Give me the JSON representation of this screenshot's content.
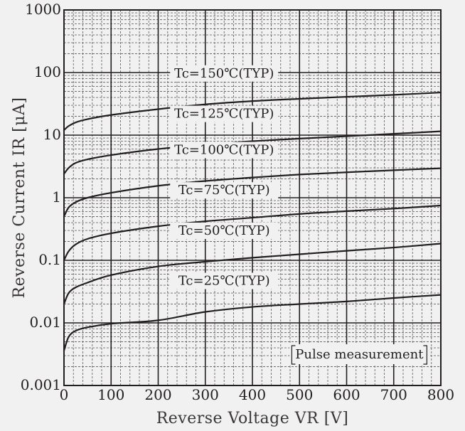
{
  "chart_data": {
    "type": "line",
    "xlabel": "Reverse Voltage  VR [V]",
    "ylabel": "Reverse Current IR [μA]",
    "xlim": [
      0,
      800
    ],
    "ylim": [
      0.001,
      1000
    ],
    "yscale": "log",
    "grid": true,
    "x_ticks": [
      0,
      100,
      200,
      300,
      400,
      500,
      600,
      700,
      800
    ],
    "y_ticks": [
      0.001,
      0.01,
      0.1,
      1,
      10,
      100,
      1000
    ],
    "y_tick_labels": [
      "0.001",
      "0.01",
      "0.1",
      "1",
      "10",
      "100",
      "1000"
    ],
    "annotation": "Pulse measurement",
    "series": [
      {
        "name": "Tc=150℃(TYP)",
        "x": [
          0,
          10,
          25,
          50,
          100,
          200,
          300,
          400,
          500,
          600,
          700,
          800
        ],
        "y": [
          12,
          14,
          16,
          18,
          21,
          26,
          31,
          35,
          38,
          41,
          44,
          48
        ]
      },
      {
        "name": "Tc=125℃(TYP)",
        "x": [
          0,
          10,
          25,
          50,
          100,
          200,
          300,
          400,
          500,
          600,
          700,
          800
        ],
        "y": [
          2.4,
          3.0,
          3.6,
          4.1,
          4.8,
          6.0,
          7.0,
          8.0,
          8.8,
          9.6,
          10.5,
          11.5
        ]
      },
      {
        "name": "Tc=100℃(TYP)",
        "x": [
          0,
          10,
          25,
          50,
          100,
          200,
          300,
          400,
          500,
          600,
          700,
          800
        ],
        "y": [
          0.5,
          0.7,
          0.85,
          1.0,
          1.2,
          1.55,
          1.85,
          2.1,
          2.35,
          2.55,
          2.75,
          2.95
        ]
      },
      {
        "name": "Tc=75℃(TYP)",
        "x": [
          0,
          10,
          25,
          50,
          100,
          200,
          300,
          400,
          500,
          600,
          700,
          800
        ],
        "y": [
          0.1,
          0.14,
          0.18,
          0.22,
          0.27,
          0.35,
          0.42,
          0.48,
          0.55,
          0.61,
          0.67,
          0.75
        ]
      },
      {
        "name": "Tc=50℃(TYP)",
        "x": [
          0,
          10,
          25,
          50,
          100,
          200,
          300,
          400,
          500,
          600,
          700,
          800
        ],
        "y": [
          0.02,
          0.03,
          0.037,
          0.044,
          0.058,
          0.08,
          0.095,
          0.11,
          0.125,
          0.142,
          0.16,
          0.185
        ]
      },
      {
        "name": "Tc=25℃(TYP)",
        "x": [
          0,
          10,
          25,
          50,
          100,
          200,
          300,
          400,
          500,
          600,
          700,
          800
        ],
        "y": [
          0.0036,
          0.006,
          0.0075,
          0.0085,
          0.0097,
          0.011,
          0.015,
          0.018,
          0.02,
          0.022,
          0.025,
          0.028
        ]
      }
    ]
  }
}
